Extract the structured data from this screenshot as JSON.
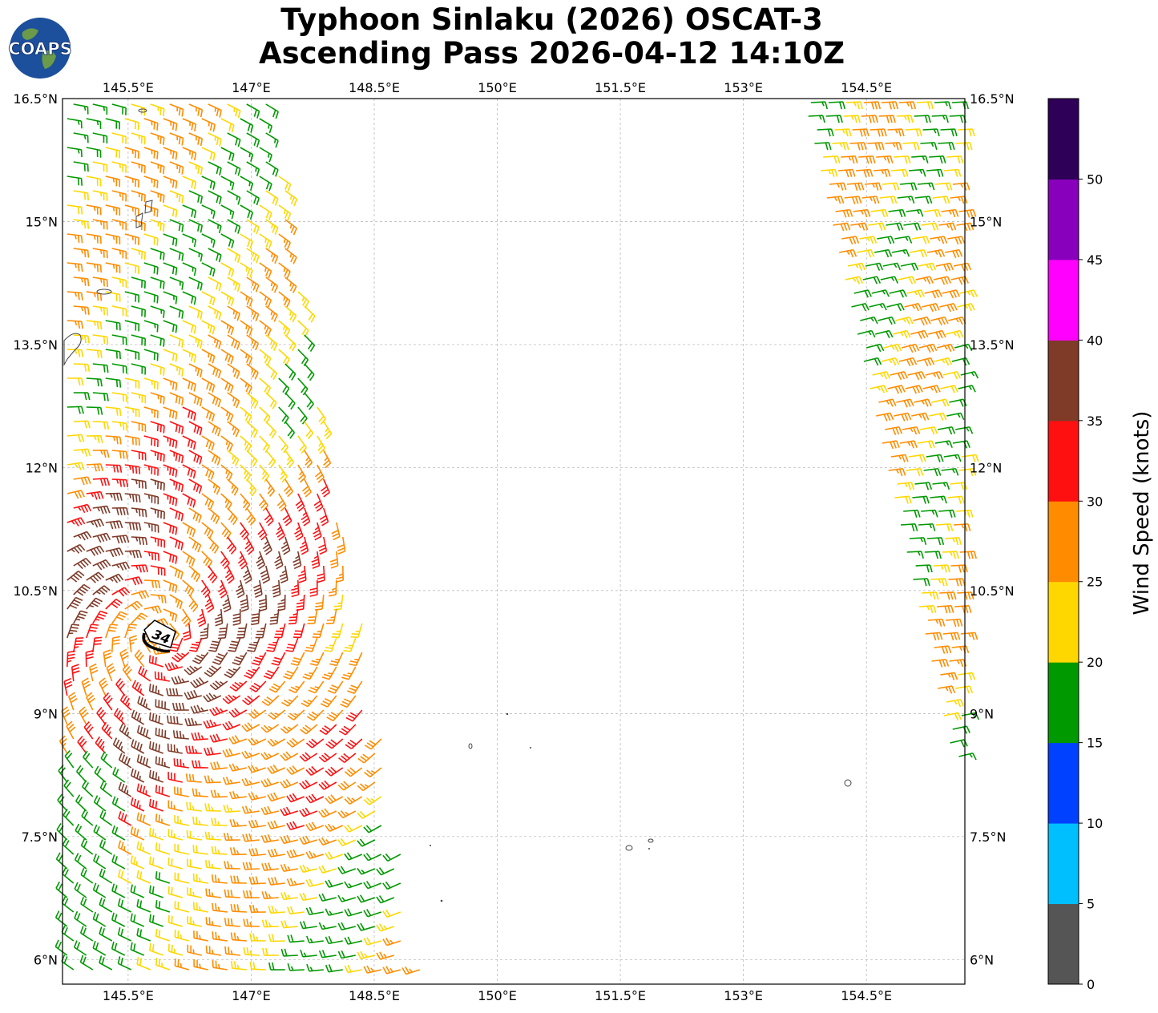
{
  "title": {
    "line1": "Typhoon Sinlaku (2026) OSCAT-3",
    "line2": "Ascending Pass 2026-04-12 14:10Z"
  },
  "logo": {
    "text": "COAPS",
    "icon": "globe-icon"
  },
  "map": {
    "lon_range": [
      144.7,
      155.7
    ],
    "lat_range": [
      5.7,
      16.5
    ],
    "lon_ticks": [
      "145.5°E",
      "147°E",
      "148.5°E",
      "150°E",
      "151.5°E",
      "153°E",
      "154.5°E"
    ],
    "lat_ticks": [
      "16.5°N",
      "15°N",
      "13.5°N",
      "12°N",
      "10.5°N",
      "9°N",
      "7.5°N",
      "6°N"
    ],
    "storm_marker": {
      "label": "34",
      "lon": 145.9,
      "lat": 9.8
    }
  },
  "colorbar": {
    "label": "Wind Speed (knots)",
    "ticks": [
      "0",
      "5",
      "10",
      "15",
      "20",
      "25",
      "30",
      "35",
      "40",
      "45",
      "50"
    ],
    "colors": [
      "#555555",
      "#00bfff",
      "#0040ff",
      "#009900",
      "#ffd700",
      "#ff8c00",
      "#ff1010",
      "#7f3a28",
      "#ff00ff",
      "#8800bb",
      "#2e0058"
    ]
  }
}
